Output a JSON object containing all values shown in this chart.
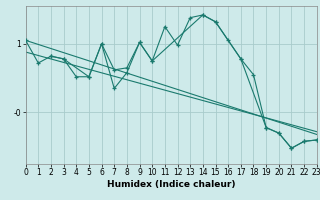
{
  "xlabel": "Humidex (Indice chaleur)",
  "background_color": "#ceeaea",
  "grid_color": "#a8cccc",
  "line_color": "#1a7a6e",
  "x_min": 0,
  "x_max": 23,
  "y_min": -0.75,
  "y_max": 1.55,
  "ytick_vals": [
    1.0,
    0.0
  ],
  "ytick_labels": [
    "1",
    "-0"
  ],
  "series1_x": [
    0,
    1,
    2,
    3,
    4,
    5,
    6,
    7,
    8,
    9,
    10,
    11,
    12,
    13,
    14,
    15,
    16,
    17,
    18,
    19,
    20,
    21,
    22,
    23
  ],
  "series1_y": [
    1.05,
    0.72,
    0.82,
    0.78,
    0.52,
    0.52,
    1.0,
    0.62,
    0.65,
    1.02,
    0.75,
    1.25,
    0.98,
    1.38,
    1.42,
    1.32,
    1.05,
    0.78,
    0.55,
    -0.22,
    -0.3,
    -0.52,
    -0.42,
    -0.4
  ],
  "series2_x": [
    2,
    3,
    5,
    6,
    7,
    8,
    9,
    10,
    14,
    15,
    17,
    19,
    20,
    21,
    22,
    23
  ],
  "series2_y": [
    0.82,
    0.78,
    0.52,
    1.0,
    0.35,
    0.58,
    1.02,
    0.75,
    1.42,
    1.32,
    0.78,
    -0.22,
    -0.3,
    -0.52,
    -0.42,
    -0.4
  ],
  "trend1_x": [
    0,
    23
  ],
  "trend1_y": [
    1.05,
    -0.32
  ],
  "trend2_x": [
    0,
    23
  ],
  "trend2_y": [
    0.88,
    -0.28
  ],
  "fontsize_label": 6.5,
  "fontsize_tick": 5.5
}
